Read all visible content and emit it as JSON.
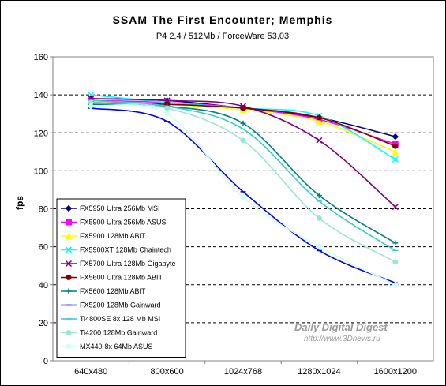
{
  "chart_data": {
    "type": "line",
    "title": "SSAM The First Encounter; Memphis",
    "subtitle": "P4 2,4 / 512Mb / ForceWare 53,03",
    "ylabel": "fps",
    "xlabel": "",
    "categories": [
      "640x480",
      "800x600",
      "1024x768",
      "1280x1024",
      "1600x1200"
    ],
    "ylim": [
      0,
      160
    ],
    "yticks": [
      0,
      20,
      40,
      60,
      80,
      100,
      120,
      140,
      160
    ],
    "grid": true,
    "legend_position": "inside-bottom-left",
    "watermark": {
      "line1": "Daily Digital Digest",
      "line2": "http://www.3Dnews.ru"
    },
    "series": [
      {
        "name": "FX5950 Ultra 256Mb MSI",
        "color": "#000080",
        "marker": "diamond",
        "values": [
          138,
          137,
          133,
          128,
          118
        ]
      },
      {
        "name": "FX5900 Ultra 256Mb ASUS",
        "color": "#ff00ff",
        "marker": "square",
        "values": [
          137,
          136,
          133,
          127,
          114
        ]
      },
      {
        "name": "FX5900 128Mb ABIT",
        "color": "#ffff00",
        "marker": "triangle",
        "values": [
          136,
          135,
          132,
          126,
          110
        ]
      },
      {
        "name": "FX5900XT 128Mb Chaintech",
        "color": "#00ffff",
        "marker": "x",
        "values": [
          140,
          136,
          133,
          129,
          106
        ]
      },
      {
        "name": "FX5700 Ultra 128Mb Gigabyte",
        "color": "#800080",
        "marker": "x",
        "values": [
          138,
          137,
          134,
          116,
          81
        ]
      },
      {
        "name": "FX5600 Ultra 128Mb ABIT",
        "color": "#800000",
        "marker": "circle",
        "values": [
          136,
          135,
          133,
          128,
          113
        ]
      },
      {
        "name": "FX5600 128Mb ABIT",
        "color": "#008080",
        "marker": "plus",
        "values": [
          135,
          134,
          125,
          87,
          62
        ]
      },
      {
        "name": "FX5200 128Mb Gainward",
        "color": "#0000ff",
        "marker": "dash",
        "values": [
          133,
          126,
          89,
          58,
          41
        ]
      },
      {
        "name": "Ti4800SE 8x 128 Mb MSI",
        "color": "#33cccc",
        "marker": "dash",
        "values": [
          137,
          134,
          122,
          84,
          58
        ]
      },
      {
        "name": "Ti4200 128Mb Gainward",
        "color": "#99e6d6",
        "marker": "circle",
        "values": [
          136,
          133,
          116,
          75,
          52
        ]
      },
      {
        "name": "MX440-8x 64Mb ASUS",
        "color": "#ccffee",
        "marker": "diamond",
        "values": [
          134,
          130,
          86,
          60,
          40
        ]
      }
    ]
  }
}
